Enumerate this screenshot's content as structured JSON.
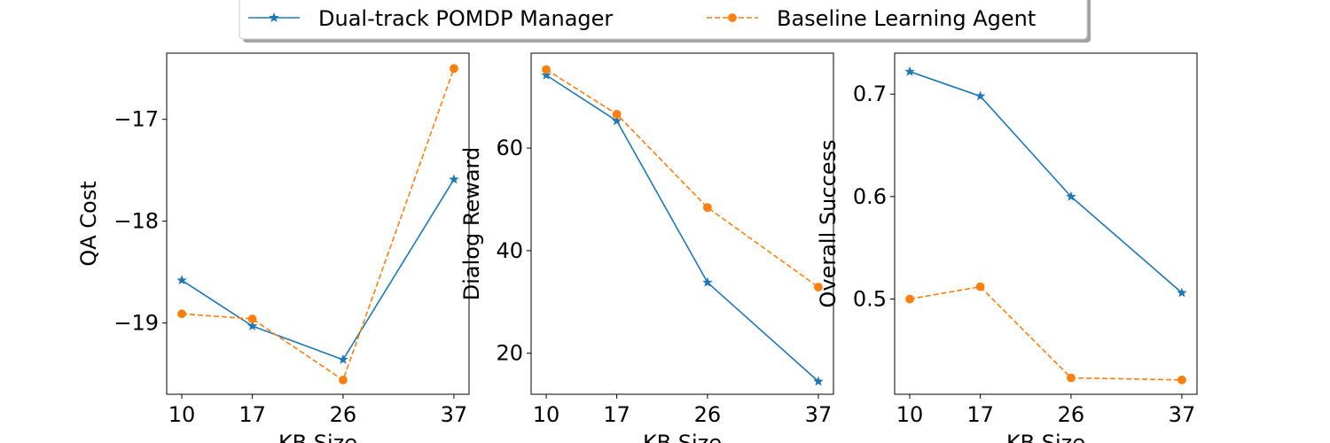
{
  "legend": {
    "placement": "top-center",
    "entries": [
      {
        "label": "Dual-track POMDP Manager",
        "color": "#1f77b4",
        "marker": "star",
        "linestyle": "solid"
      },
      {
        "label": "Baseline Learning Agent",
        "color": "#ff7f0e",
        "marker": "circle",
        "linestyle": "dashed"
      }
    ]
  },
  "chart_data": [
    {
      "type": "line",
      "xlabel": "KB Size",
      "ylabel": "QA Cost",
      "x": [
        10,
        17,
        26,
        37
      ],
      "xticks": [
        10,
        17,
        26,
        37
      ],
      "xlim": [
        8.5,
        38.5
      ],
      "ylim": [
        -19.7,
        -16.35
      ],
      "yticks": [
        -19,
        -18,
        -17
      ],
      "ytick_labels": [
        "−19",
        "−18",
        "−17"
      ],
      "grid": false,
      "series": [
        {
          "name": "Dual-track POMDP Manager",
          "values": [
            -18.58,
            -19.03,
            -19.36,
            -17.59
          ]
        },
        {
          "name": "Baseline Learning Agent",
          "values": [
            -18.91,
            -18.96,
            -19.56,
            -16.5
          ]
        }
      ]
    },
    {
      "type": "line",
      "xlabel": "KB Size",
      "ylabel": "Dialog Reward",
      "x": [
        10,
        17,
        26,
        37
      ],
      "xticks": [
        10,
        17,
        26,
        37
      ],
      "xlim": [
        8.5,
        38.5
      ],
      "ylim": [
        12,
        78.5
      ],
      "yticks": [
        20,
        40,
        60
      ],
      "ytick_labels": [
        "20",
        "40",
        "60"
      ],
      "grid": false,
      "series": [
        {
          "name": "Dual-track POMDP Manager",
          "values": [
            74.2,
            65.3,
            33.8,
            14.5
          ]
        },
        {
          "name": "Baseline Learning Agent",
          "values": [
            75.3,
            66.6,
            48.4,
            32.9
          ]
        }
      ]
    },
    {
      "type": "line",
      "xlabel": "KB Size",
      "ylabel": "Overall Success",
      "x": [
        10,
        17,
        26,
        37
      ],
      "xticks": [
        10,
        17,
        26,
        37
      ],
      "xlim": [
        8.5,
        38.5
      ],
      "ylim": [
        0.407,
        0.74
      ],
      "yticks": [
        0.5,
        0.6,
        0.7
      ],
      "ytick_labels": [
        "0.5",
        "0.6",
        "0.7"
      ],
      "grid": false,
      "series": [
        {
          "name": "Dual-track POMDP Manager",
          "values": [
            0.722,
            0.698,
            0.6,
            0.506
          ]
        },
        {
          "name": "Baseline Learning Agent",
          "values": [
            0.5,
            0.512,
            0.423,
            0.421
          ]
        }
      ]
    }
  ]
}
